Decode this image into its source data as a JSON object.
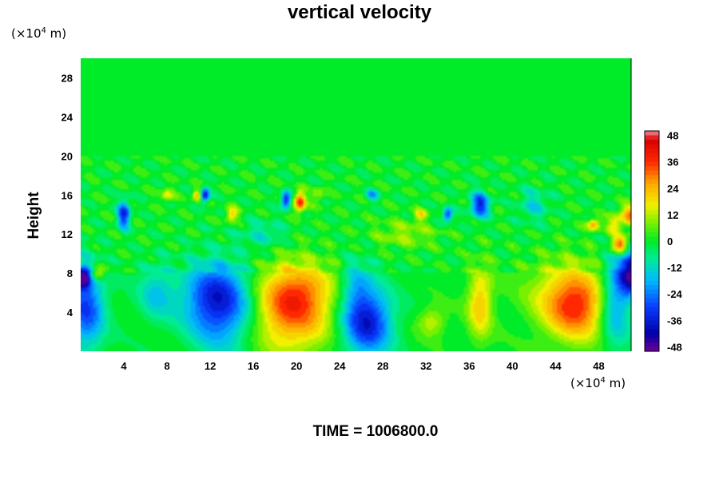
{
  "chart_data": {
    "type": "heatmap",
    "title": "vertical velocity",
    "ylabel": "Height",
    "xlabel": "",
    "y_unit": {
      "base": "(×10",
      "exp": "4",
      "rest": " m)"
    },
    "x_unit": {
      "base": "(×10",
      "exp": "4",
      "rest": " m)"
    },
    "xlim": [
      0,
      51
    ],
    "ylim": [
      0,
      30
    ],
    "x_ticks": [
      "4",
      "8",
      "12",
      "16",
      "20",
      "24",
      "28",
      "32",
      "36",
      "40",
      "44",
      "48"
    ],
    "y_ticks": [
      "4",
      "8",
      "12",
      "16",
      "20",
      "24",
      "28"
    ],
    "colorbar": {
      "range": [
        -50,
        50
      ],
      "tick_labels": [
        "48",
        "36",
        "24",
        "12",
        "0",
        "-12",
        "-24",
        "-36",
        "-48"
      ]
    },
    "background_value": 0,
    "features": [
      {
        "x": 19.5,
        "y": 4.2,
        "sx": 2.6,
        "sy": 3.0,
        "value": 32
      },
      {
        "x": 20.5,
        "y": 6.5,
        "sx": 2.2,
        "sy": 1.8,
        "value": 12
      },
      {
        "x": 13,
        "y": 4.5,
        "sx": 2.2,
        "sy": 3.0,
        "value": -30
      },
      {
        "x": 12,
        "y": 6,
        "sx": 2.0,
        "sy": 2.0,
        "value": -12
      },
      {
        "x": 26.5,
        "y": 3.0,
        "sx": 1.6,
        "sy": 2.4,
        "value": -38
      },
      {
        "x": 25.5,
        "y": 7.0,
        "sx": 1.0,
        "sy": 1.8,
        "value": -14
      },
      {
        "x": 46,
        "y": 4.5,
        "sx": 2.0,
        "sy": 2.4,
        "value": 30
      },
      {
        "x": 44.5,
        "y": 6,
        "sx": 2.5,
        "sy": 2.5,
        "value": 12
      },
      {
        "x": 49.5,
        "y": 5,
        "sx": 1.0,
        "sy": 3.0,
        "value": -25
      },
      {
        "x": 51,
        "y": 8,
        "sx": 0.8,
        "sy": 1.5,
        "value": -45
      },
      {
        "x": 0.5,
        "y": 4.5,
        "sx": 1.2,
        "sy": 3.0,
        "value": -30
      },
      {
        "x": 0.2,
        "y": 7.5,
        "sx": 0.5,
        "sy": 0.7,
        "value": -45
      },
      {
        "x": 37,
        "y": 5,
        "sx": 0.8,
        "sy": 2.6,
        "value": 22
      },
      {
        "x": 32.5,
        "y": 3,
        "sx": 0.9,
        "sy": 1.0,
        "value": 14
      },
      {
        "x": 1.5,
        "y": 8,
        "sx": 0.5,
        "sy": 0.5,
        "value": 22
      },
      {
        "x": 20.3,
        "y": 15.3,
        "sx": 0.35,
        "sy": 0.7,
        "value": 40
      },
      {
        "x": 19.0,
        "y": 15.5,
        "sx": 0.3,
        "sy": 0.6,
        "value": -40
      },
      {
        "x": 4.0,
        "y": 14.0,
        "sx": 0.4,
        "sy": 1.0,
        "value": -35
      },
      {
        "x": 11.5,
        "y": 16.0,
        "sx": 0.3,
        "sy": 0.5,
        "value": -40
      },
      {
        "x": 10.8,
        "y": 16.0,
        "sx": 0.3,
        "sy": 0.4,
        "value": 25
      },
      {
        "x": 37,
        "y": 15,
        "sx": 0.6,
        "sy": 0.9,
        "value": -35
      },
      {
        "x": 34,
        "y": 14,
        "sx": 0.3,
        "sy": 0.5,
        "value": -35
      },
      {
        "x": 22,
        "y": 16,
        "sx": 0.4,
        "sy": 0.5,
        "value": 12
      },
      {
        "x": 27,
        "y": 16,
        "sx": 0.4,
        "sy": 0.4,
        "value": -20
      },
      {
        "x": 50,
        "y": 11,
        "sx": 0.5,
        "sy": 0.6,
        "value": 38
      },
      {
        "x": 49.5,
        "y": 13,
        "sx": 0.5,
        "sy": 0.7,
        "value": 20
      },
      {
        "x": 47.5,
        "y": 13,
        "sx": 0.4,
        "sy": 0.4,
        "value": 28
      },
      {
        "x": 51,
        "y": 14,
        "sx": 0.6,
        "sy": 0.7,
        "value": 30
      },
      {
        "x": 14,
        "y": 14,
        "sx": 0.4,
        "sy": 0.5,
        "value": 22
      },
      {
        "x": 31.5,
        "y": 14,
        "sx": 0.4,
        "sy": 0.4,
        "value": 18
      },
      {
        "x": 8,
        "y": 16,
        "sx": 0.4,
        "sy": 0.5,
        "value": 16
      },
      {
        "x": 42,
        "y": 15,
        "sx": 1.0,
        "sy": 1.2,
        "value": -12
      },
      {
        "x": 7,
        "y": 6,
        "sx": 1.2,
        "sy": 2.0,
        "value": -14
      },
      {
        "x": 30,
        "y": 12,
        "sx": 2.0,
        "sy": 1.0,
        "value": 10
      },
      {
        "x": 17,
        "y": 12,
        "sx": 1.5,
        "sy": 1.0,
        "value": -10
      }
    ]
  },
  "time_label": "TIME = 1006800.0"
}
